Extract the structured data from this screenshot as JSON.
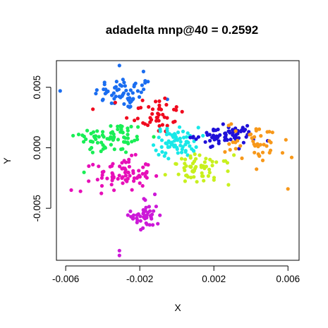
{
  "chart_data": {
    "type": "scatter",
    "title": "adadelta mnp@40 = 0.2592",
    "xlabel": "X",
    "ylabel": "Y",
    "xlim": [
      -0.0065,
      0.0066
    ],
    "ylim": [
      -0.0093,
      0.0072
    ],
    "x_ticks": [
      -0.006,
      -0.002,
      0.002,
      0.006
    ],
    "x_tick_labels": [
      "-0.006",
      "-0.002",
      "0.002",
      "0.006"
    ],
    "y_ticks": [
      -0.005,
      0.0,
      0.005
    ],
    "y_tick_labels": [
      "-0.005",
      "0.000",
      "0.005"
    ],
    "grid": false,
    "series": [
      {
        "color": "#1a6df0",
        "center": [
          -0.0028,
          0.0045
        ],
        "spread": [
          0.0011,
          0.0009
        ],
        "count": 60,
        "extra": [
          [
            -0.0063,
            0.0047
          ],
          [
            -0.0031,
            0.0068
          ],
          [
            -0.0018,
            0.0063
          ]
        ]
      },
      {
        "color": "#f00a1e",
        "center": [
          -0.0012,
          0.0028
        ],
        "spread": [
          0.0011,
          0.0011
        ],
        "count": 45,
        "extra": []
      },
      {
        "color": "#19ee55",
        "center": [
          -0.0035,
          0.0008
        ],
        "spread": [
          0.0013,
          0.0009
        ],
        "count": 75,
        "extra": [
          [
            -0.0053,
            0.0011
          ],
          [
            -0.0045,
            0.0013
          ]
        ]
      },
      {
        "color": "#e70fb8",
        "center": [
          -0.0029,
          -0.0022
        ],
        "spread": [
          0.001,
          0.0009
        ],
        "count": 75,
        "extra": [
          [
            -0.0057,
            -0.0035
          ],
          [
            -0.0052,
            -0.0036
          ]
        ]
      },
      {
        "color": "#cc19d8",
        "center": [
          -0.0017,
          -0.0056
        ],
        "spread": [
          0.0005,
          0.001
        ],
        "count": 45,
        "extra": [
          [
            -0.0031,
            -0.0089
          ],
          [
            -0.0031,
            -0.0085
          ]
        ]
      },
      {
        "color": "#18e8e8",
        "center": [
          0.0,
          0.0005
        ],
        "spread": [
          0.0008,
          0.0008
        ],
        "count": 70,
        "extra": []
      },
      {
        "color": "#1f10d8",
        "center": [
          0.0026,
          0.001
        ],
        "spread": [
          0.0011,
          0.0005
        ],
        "count": 70,
        "extra": []
      },
      {
        "color": "#c8f01e",
        "center": [
          0.0013,
          -0.0018
        ],
        "spread": [
          0.0011,
          0.0008
        ],
        "count": 60,
        "extra": []
      },
      {
        "color": "#f7981a",
        "center": [
          0.0043,
          0.0005
        ],
        "spread": [
          0.0011,
          0.0011
        ],
        "count": 45,
        "extra": [
          [
            0.006,
            -0.0034
          ],
          [
            0.0062,
            -0.0008
          ]
        ]
      }
    ]
  }
}
